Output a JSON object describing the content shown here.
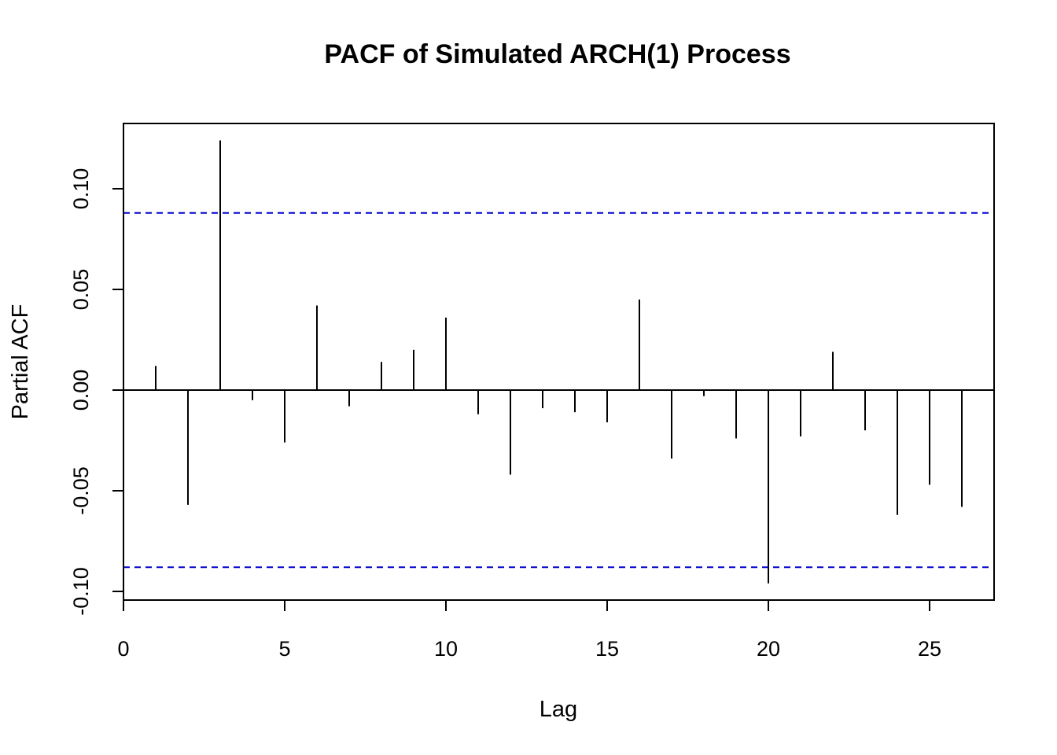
{
  "chart_data": {
    "type": "bar",
    "title": "PACF of Simulated ARCH(1) Process",
    "xlabel": "Lag",
    "ylabel": "Partial ACF",
    "xlim": [
      0,
      27
    ],
    "ylim": [
      -0.1,
      0.12
    ],
    "x_ticks": [
      0,
      5,
      10,
      15,
      20,
      25
    ],
    "x_tick_labels": [
      "0",
      "5",
      "10",
      "15",
      "20",
      "25"
    ],
    "y_ticks": [
      -0.1,
      -0.05,
      0.0,
      0.05,
      0.1
    ],
    "y_tick_labels": [
      "-0.10",
      "-0.05",
      "0.00",
      "0.05",
      "0.10"
    ],
    "lags": [
      1,
      2,
      3,
      4,
      5,
      6,
      7,
      8,
      9,
      10,
      11,
      12,
      13,
      14,
      15,
      16,
      17,
      18,
      19,
      20,
      21,
      22,
      23,
      24,
      25,
      26
    ],
    "values": [
      0.012,
      -0.057,
      0.124,
      -0.005,
      -0.026,
      0.042,
      -0.008,
      0.014,
      0.02,
      0.036,
      -0.012,
      -0.042,
      -0.009,
      -0.011,
      -0.016,
      0.045,
      -0.034,
      -0.003,
      -0.024,
      -0.096,
      -0.023,
      0.019,
      -0.02,
      -0.062,
      -0.047,
      -0.058
    ],
    "confidence_bounds": [
      0.088,
      -0.088
    ],
    "colors": {
      "bars": "#000000",
      "confidence": "#0000cd",
      "axes": "#000000"
    },
    "grid": false,
    "legend": "none"
  }
}
